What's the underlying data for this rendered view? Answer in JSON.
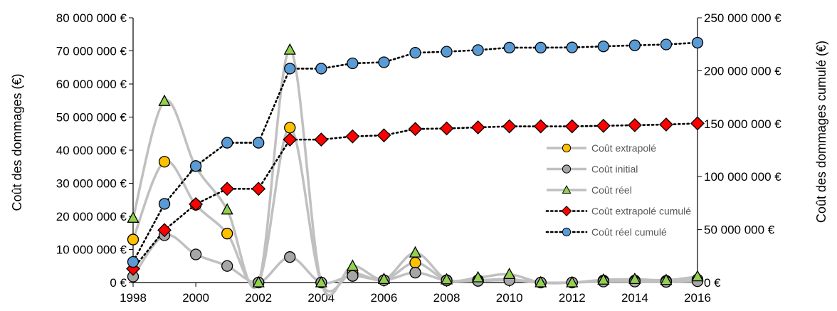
{
  "chart_data": {
    "type": "line",
    "x": [
      1998,
      1999,
      2000,
      2001,
      2002,
      2003,
      2004,
      2005,
      2006,
      2007,
      2008,
      2009,
      2010,
      2011,
      2012,
      2013,
      2014,
      2015,
      2016
    ],
    "x_ticks": [
      "1998",
      "2000",
      "2002",
      "2004",
      "2006",
      "2008",
      "2010",
      "2012",
      "2014",
      "2016"
    ],
    "ylabel_left": "Coût des dommages (€)",
    "ylabel_right": "Coût des dommages cumulé (€)",
    "ylim_left": [
      0,
      80000000
    ],
    "ylim_right": [
      0,
      250000000
    ],
    "y_ticks_left": [
      "0 €",
      "10 000 000 €",
      "20 000 000 €",
      "30 000 000 €",
      "40 000 000 €",
      "50 000 000 €",
      "60 000 000 €",
      "70 000 000 €",
      "80 000 000 €"
    ],
    "y_ticks_right": [
      "0 €",
      "50 000 000 €",
      "100 000 000 €",
      "150 000 000 €",
      "200 000 000 €",
      "250 000 000 €"
    ],
    "grid": false,
    "legend_position": "right-center",
    "series": [
      {
        "name": "Coût extrapolé",
        "axis": "left",
        "line": "solid",
        "line_color": "#c0c0c0",
        "marker": "circle",
        "marker_color": "#ffc000",
        "values": [
          13000000,
          36500000,
          23500000,
          14800000,
          0,
          46800000,
          0,
          2800000,
          700000,
          6000000,
          700000,
          700000,
          1000000,
          0,
          0,
          600000,
          600000,
          500000,
          900000
        ]
      },
      {
        "name": "Coût initial",
        "axis": "left",
        "line": "solid",
        "line_color": "#c0c0c0",
        "marker": "circle",
        "marker_color": "#a6a6a6",
        "values": [
          1800000,
          14300000,
          8500000,
          5000000,
          0,
          7700000,
          0,
          2000000,
          700000,
          3000000,
          600000,
          500000,
          700000,
          0,
          0,
          300000,
          300000,
          200000,
          400000
        ]
      },
      {
        "name": "Coût réel",
        "axis": "left",
        "line": "solid",
        "line_color": "#c0c0c0",
        "marker": "triangle",
        "marker_color": "#92d050",
        "values": [
          19500000,
          54800000,
          35000000,
          22000000,
          0,
          70300000,
          0,
          5000000,
          1000000,
          9000000,
          900000,
          1500000,
          2500000,
          0,
          0,
          800000,
          1000000,
          700000,
          1800000
        ]
      },
      {
        "name": "Coût extrapolé cumulé",
        "axis": "right",
        "line": "dotted",
        "line_color": "#000000",
        "marker": "diamond",
        "marker_color": "#ff0000",
        "values": [
          13000000,
          49500000,
          74000000,
          88500000,
          88500000,
          135000000,
          135000000,
          138000000,
          139000000,
          145000000,
          145500000,
          146500000,
          147500000,
          147500000,
          147500000,
          148000000,
          148600000,
          149200000,
          150300000
        ]
      },
      {
        "name": "Coût réel cumulé",
        "axis": "right",
        "line": "dotted",
        "line_color": "#000000",
        "marker": "circle",
        "marker_color": "#5b9bd5",
        "values": [
          19500000,
          74300000,
          110000000,
          132000000,
          132000000,
          202000000,
          202000000,
          207000000,
          208000000,
          217000000,
          218000000,
          219500000,
          221800000,
          221800000,
          222000000,
          223000000,
          224000000,
          224800000,
          226500000
        ]
      }
    ]
  }
}
